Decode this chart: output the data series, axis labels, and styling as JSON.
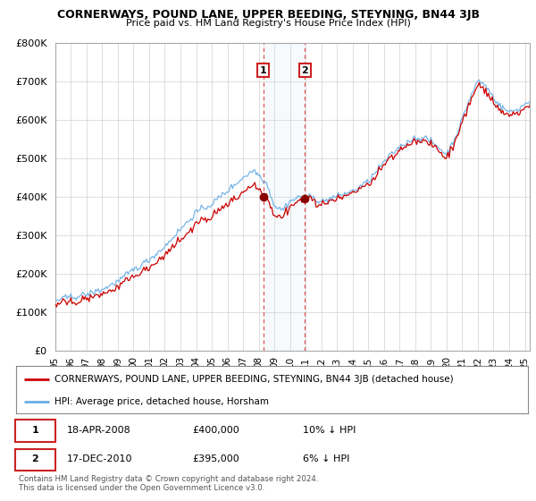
{
  "title": "CORNERWAYS, POUND LANE, UPPER BEEDING, STEYNING, BN44 3JB",
  "subtitle": "Price paid vs. HM Land Registry's House Price Index (HPI)",
  "property_color": "#cc0000",
  "hpi_color": "#6aade4",
  "transaction1_date_num": 2008.29,
  "transaction1_price": 400000,
  "transaction1_label": "1",
  "transaction1_date_str": "18-APR-2008",
  "transaction1_hpi_note": "10% ↓ HPI",
  "transaction2_date_num": 2010.96,
  "transaction2_price": 395000,
  "transaction2_label": "2",
  "transaction2_date_str": "17-DEC-2010",
  "transaction2_hpi_note": "6% ↓ HPI",
  "legend_property": "CORNERWAYS, POUND LANE, UPPER BEEDING, STEYNING, BN44 3JB (detached house)",
  "legend_hpi": "HPI: Average price, detached house, Horsham",
  "footer1": "Contains HM Land Registry data © Crown copyright and database right 2024.",
  "footer2": "This data is licensed under the Open Government Licence v3.0.",
  "ylim_min": 0,
  "ylim_max": 800000,
  "yticks": [
    0,
    100000,
    200000,
    300000,
    400000,
    500000,
    600000,
    700000,
    800000
  ],
  "xlim_min": 1995.0,
  "xlim_max": 2025.3
}
